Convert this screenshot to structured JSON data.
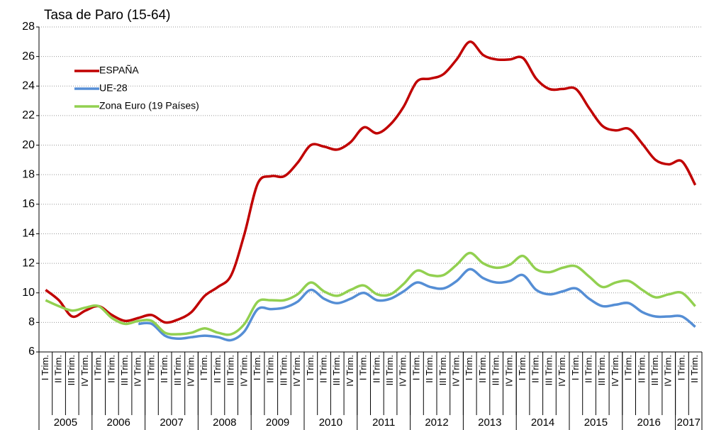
{
  "chart_data": {
    "type": "line",
    "title": "Tasa de Paro (15-64)",
    "categories": [
      "I Trim.",
      "II Trim.",
      "III Trim.",
      "IV Trim.",
      "I Trim.",
      "II Trim.",
      "III Trim.",
      "IV Trim.",
      "I Trim.",
      "II Trim.",
      "III Trim.",
      "IV Trim.",
      "I Trim.",
      "II Trim.",
      "III Trim.",
      "IV Trim.",
      "I Trim.",
      "II Trim.",
      "III Trim.",
      "IV Trim.",
      "I Trim.",
      "II Trim.",
      "III Trim.",
      "IV Trim.",
      "I Trim.",
      "II Trim.",
      "III Trim.",
      "IV Trim.",
      "I Trim.",
      "II Trim.",
      "III Trim.",
      "IV Trim.",
      "I Trim.",
      "II Trim.",
      "III Trim.",
      "IV Trim.",
      "I Trim.",
      "II Trim.",
      "III Trim.",
      "IV Trim.",
      "I Trim.",
      "II Trim.",
      "III Trim.",
      "IV Trim.",
      "I Trim.",
      "II Trim.",
      "III Trim.",
      "IV Trim.",
      "I Trim.",
      "II Trim."
    ],
    "groups": [
      {
        "label": "2005",
        "count": 4
      },
      {
        "label": "2006",
        "count": 4
      },
      {
        "label": "2007",
        "count": 4
      },
      {
        "label": "2008",
        "count": 4
      },
      {
        "label": "2009",
        "count": 4
      },
      {
        "label": "2010",
        "count": 4
      },
      {
        "label": "2011",
        "count": 4
      },
      {
        "label": "2012",
        "count": 4
      },
      {
        "label": "2013",
        "count": 4
      },
      {
        "label": "2014",
        "count": 4
      },
      {
        "label": "2015",
        "count": 4
      },
      {
        "label": "2016",
        "count": 4
      },
      {
        "label": "2017",
        "count": 2
      }
    ],
    "series": [
      {
        "name": "ESPAÑA",
        "color": "#c00000",
        "values": [
          10.2,
          9.5,
          8.4,
          8.8,
          9.1,
          8.5,
          8.1,
          8.3,
          8.5,
          8.0,
          8.2,
          8.7,
          9.8,
          10.4,
          11.2,
          14.0,
          17.4,
          17.9,
          17.9,
          18.8,
          20.0,
          19.9,
          19.7,
          20.2,
          21.2,
          20.8,
          21.4,
          22.6,
          24.3,
          24.5,
          24.8,
          25.8,
          27.0,
          26.1,
          25.8,
          25.8,
          25.9,
          24.5,
          23.8,
          23.8,
          23.8,
          22.5,
          21.3,
          21.0,
          21.1,
          20.1,
          19.0,
          18.7,
          18.9,
          17.3
        ]
      },
      {
        "name": "UE-28",
        "color": "#558ed5",
        "values": [
          null,
          null,
          null,
          null,
          null,
          null,
          null,
          7.9,
          7.9,
          7.1,
          6.9,
          7.0,
          7.1,
          7.0,
          6.8,
          7.4,
          8.9,
          8.9,
          9.0,
          9.4,
          10.2,
          9.6,
          9.3,
          9.6,
          10.0,
          9.5,
          9.6,
          10.1,
          10.7,
          10.4,
          10.3,
          10.8,
          11.6,
          11.0,
          10.7,
          10.8,
          11.2,
          10.2,
          9.9,
          10.1,
          10.3,
          9.6,
          9.1,
          9.2,
          9.3,
          8.7,
          8.4,
          8.4,
          8.4,
          7.7
        ]
      },
      {
        "name": "Zona Euro (19 Países)",
        "color": "#92d050",
        "values": [
          9.5,
          9.1,
          8.8,
          9.0,
          9.1,
          8.3,
          7.9,
          8.1,
          8.1,
          7.3,
          7.2,
          7.3,
          7.6,
          7.3,
          7.2,
          7.9,
          9.4,
          9.5,
          9.5,
          9.9,
          10.7,
          10.1,
          9.8,
          10.2,
          10.5,
          9.9,
          9.9,
          10.6,
          11.5,
          11.2,
          11.2,
          11.9,
          12.7,
          12.0,
          11.7,
          11.9,
          12.5,
          11.6,
          11.4,
          11.7,
          11.8,
          11.1,
          10.4,
          10.7,
          10.8,
          10.2,
          9.7,
          9.9,
          10.0,
          9.1
        ]
      }
    ],
    "ylim": [
      6,
      28
    ],
    "yticks": [
      6,
      8,
      10,
      12,
      14,
      16,
      18,
      20,
      22,
      24,
      26,
      28
    ],
    "grid": true,
    "legend": "upper left"
  }
}
